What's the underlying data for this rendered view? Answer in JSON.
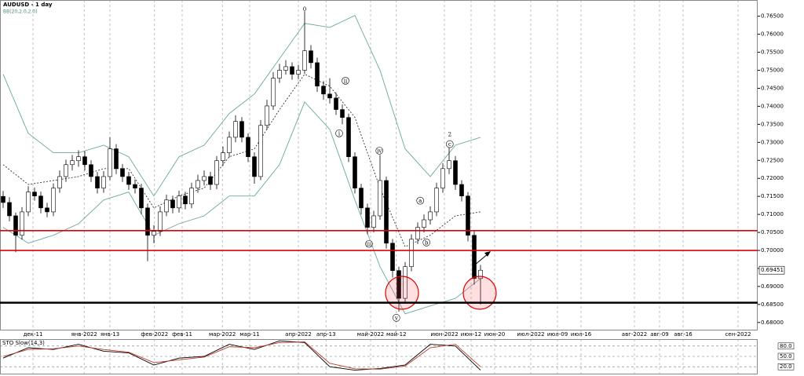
{
  "chart_data": [
    {
      "type": "candlestick",
      "title": "AUDUSD - 1 day",
      "subtitle": "BB(20,2.0,2.0)",
      "up_color": "#ffffff",
      "down_color": "#000000",
      "wick_color": "#000000",
      "xlim": [
        -0.5,
        120.125
      ],
      "ylim": [
        0.678,
        0.7695
      ],
      "grid": "x",
      "xticks": [
        {
          "value": 4.75,
          "label": "дек-11"
        },
        {
          "value": 12.9,
          "label": "янв-2022"
        },
        {
          "value": 17,
          "label": "янв-13"
        },
        {
          "value": 24.1,
          "label": "фев-2022"
        },
        {
          "value": 28.5,
          "label": "фев-11"
        },
        {
          "value": 34.9,
          "label": "мар-2022"
        },
        {
          "value": 39.25,
          "label": "мар-11"
        },
        {
          "value": 47,
          "label": "апр-2022"
        },
        {
          "value": 51.4,
          "label": "апр-13"
        },
        {
          "value": 58.5,
          "label": "май-2022"
        },
        {
          "value": 62.6,
          "label": "май-12"
        },
        {
          "value": 70.25,
          "label": "июн-2022"
        },
        {
          "value": 74.5,
          "label": "июн-12"
        },
        {
          "value": 78.25,
          "label": "июн-20"
        },
        {
          "value": 84,
          "label": "июл-2022"
        },
        {
          "value": 88.25,
          "label": "июл-09"
        },
        {
          "value": 92,
          "label": "июл-16"
        },
        {
          "value": 100.5,
          "label": "авг-2022"
        },
        {
          "value": 104.5,
          "label": "авг-09"
        },
        {
          "value": 108.25,
          "label": "авг-16"
        },
        {
          "value": 117,
          "label": "сен-2022"
        }
      ],
      "yticks": [
        {
          "value": 0.765,
          "label": "0.76500"
        },
        {
          "value": 0.76,
          "label": "0.76000"
        },
        {
          "value": 0.755,
          "label": "0.75500"
        },
        {
          "value": 0.75,
          "label": "0.75000"
        },
        {
          "value": 0.745,
          "label": "0.74500"
        },
        {
          "value": 0.74,
          "label": "0.74000"
        },
        {
          "value": 0.735,
          "label": "0.73500"
        },
        {
          "value": 0.73,
          "label": "0.73000"
        },
        {
          "value": 0.725,
          "label": "0.72500"
        },
        {
          "value": 0.72,
          "label": "0.72000"
        },
        {
          "value": 0.715,
          "label": "0.71500"
        },
        {
          "value": 0.71,
          "label": "0.71000"
        },
        {
          "value": 0.705,
          "label": "0.70500"
        },
        {
          "value": 0.7,
          "label": "0.70000"
        },
        {
          "value": 0.695,
          "label": "0.69500"
        },
        {
          "value": 0.69,
          "label": "0.69000"
        },
        {
          "value": 0.685,
          "label": "0.68500"
        },
        {
          "value": 0.68,
          "label": "0.68000"
        }
      ],
      "last_price": 0.69451,
      "ohlc": [
        [
          0.715,
          0.7165,
          0.7118,
          0.7133
        ],
        [
          0.7133,
          0.7148,
          0.7081,
          0.7096
        ],
        [
          0.7096,
          0.7105,
          0.6995,
          0.7042
        ],
        [
          0.7042,
          0.712,
          0.703,
          0.7107
        ],
        [
          0.7107,
          0.7178,
          0.7095,
          0.7162
        ],
        [
          0.7162,
          0.7175,
          0.7138,
          0.7151
        ],
        [
          0.7151,
          0.7163,
          0.7103,
          0.7118
        ],
        [
          0.7118,
          0.7132,
          0.7092,
          0.7107
        ],
        [
          0.7107,
          0.7186,
          0.7095,
          0.7173
        ],
        [
          0.7173,
          0.7222,
          0.716,
          0.7205
        ],
        [
          0.7205,
          0.7252,
          0.719,
          0.7238
        ],
        [
          0.7238,
          0.7265,
          0.7222,
          0.7249
        ],
        [
          0.7249,
          0.7278,
          0.7232,
          0.726
        ],
        [
          0.726,
          0.7275,
          0.7222,
          0.7238
        ],
        [
          0.7238,
          0.725,
          0.719,
          0.7205
        ],
        [
          0.7205,
          0.7218,
          0.7158,
          0.7173
        ],
        [
          0.7173,
          0.722,
          0.716,
          0.7205
        ],
        [
          0.7205,
          0.7314,
          0.7195,
          0.7282
        ],
        [
          0.7282,
          0.7295,
          0.7212,
          0.7227
        ],
        [
          0.7227,
          0.724,
          0.719,
          0.7205
        ],
        [
          0.7205,
          0.7218,
          0.7168,
          0.7183
        ],
        [
          0.7183,
          0.7197,
          0.7158,
          0.7173
        ],
        [
          0.7173,
          0.7185,
          0.71,
          0.7118
        ],
        [
          0.7118,
          0.713,
          0.697,
          0.7042
        ],
        [
          0.7042,
          0.707,
          0.702,
          0.7053
        ],
        [
          0.7053,
          0.7122,
          0.704,
          0.7107
        ],
        [
          0.7107,
          0.7155,
          0.7095,
          0.714
        ],
        [
          0.714,
          0.7152,
          0.7103,
          0.7118
        ],
        [
          0.7118,
          0.7166,
          0.7105,
          0.7151
        ],
        [
          0.7151,
          0.7163,
          0.7114,
          0.7129
        ],
        [
          0.7129,
          0.7188,
          0.7117,
          0.7173
        ],
        [
          0.7173,
          0.721,
          0.716,
          0.7194
        ],
        [
          0.7194,
          0.7222,
          0.718,
          0.7205
        ],
        [
          0.7205,
          0.7218,
          0.7168,
          0.7183
        ],
        [
          0.7183,
          0.7262,
          0.717,
          0.7249
        ],
        [
          0.7249,
          0.7288,
          0.7235,
          0.7271
        ],
        [
          0.7271,
          0.733,
          0.7258,
          0.7314
        ],
        [
          0.7314,
          0.7375,
          0.73,
          0.7358
        ],
        [
          0.7358,
          0.737,
          0.73,
          0.7314
        ],
        [
          0.7314,
          0.7325,
          0.7245,
          0.726
        ],
        [
          0.726,
          0.7272,
          0.7185,
          0.7205
        ],
        [
          0.7205,
          0.7362,
          0.7195,
          0.7347
        ],
        [
          0.7347,
          0.7418,
          0.7335,
          0.7401
        ],
        [
          0.7401,
          0.7495,
          0.739,
          0.7478
        ],
        [
          0.7478,
          0.7518,
          0.7465,
          0.75
        ],
        [
          0.75,
          0.7528,
          0.7488,
          0.751
        ],
        [
          0.751,
          0.7522,
          0.7474,
          0.7489
        ],
        [
          0.7489,
          0.7515,
          0.7475,
          0.75
        ],
        [
          0.75,
          0.7664,
          0.749,
          0.7554
        ],
        [
          0.7554,
          0.757,
          0.7505,
          0.7521
        ],
        [
          0.7521,
          0.7535,
          0.744,
          0.7456
        ],
        [
          0.7456,
          0.747,
          0.7418,
          0.7434
        ],
        [
          0.7434,
          0.7478,
          0.7408,
          0.7423
        ],
        [
          0.7423,
          0.7438,
          0.7376,
          0.7391
        ],
        [
          0.7391,
          0.7405,
          0.735,
          0.7369
        ],
        [
          0.7369,
          0.738,
          0.7245,
          0.726
        ],
        [
          0.726,
          0.7272,
          0.7158,
          0.7173
        ],
        [
          0.7173,
          0.7185,
          0.71,
          0.7118
        ],
        [
          0.7118,
          0.713,
          0.7045,
          0.7064
        ],
        [
          0.7064,
          0.711,
          0.705,
          0.7096
        ],
        [
          0.7096,
          0.7265,
          0.7085,
          0.7194
        ],
        [
          0.7194,
          0.7205,
          0.7005,
          0.702
        ],
        [
          0.702,
          0.7032,
          0.6925,
          0.6944
        ],
        [
          0.6944,
          0.6955,
          0.683,
          0.6867
        ],
        [
          0.6867,
          0.6968,
          0.6855,
          0.6955
        ],
        [
          0.6955,
          0.7045,
          0.6942,
          0.7031
        ],
        [
          0.7031,
          0.7078,
          0.7018,
          0.7064
        ],
        [
          0.7064,
          0.71,
          0.705,
          0.7085
        ],
        [
          0.7085,
          0.7122,
          0.7072,
          0.7107
        ],
        [
          0.7107,
          0.7188,
          0.7095,
          0.7173
        ],
        [
          0.7173,
          0.7242,
          0.716,
          0.7227
        ],
        [
          0.7227,
          0.729,
          0.7212,
          0.7249
        ],
        [
          0.7249,
          0.7262,
          0.7168,
          0.7183
        ],
        [
          0.7183,
          0.7195,
          0.7136,
          0.7151
        ],
        [
          0.7151,
          0.7162,
          0.7025,
          0.7042
        ],
        [
          0.7042,
          0.7055,
          0.6905,
          0.6922
        ],
        [
          0.6922,
          0.696,
          0.685,
          0.69451
        ]
      ],
      "bands": {
        "x": [
          0,
          4,
          8,
          12,
          16,
          20,
          24,
          28,
          32,
          36,
          40,
          44,
          48,
          52,
          56,
          60,
          64,
          68,
          72,
          76
        ],
        "upper": [
          0.7489,
          0.7325,
          0.7271,
          0.7271,
          0.7292,
          0.726,
          0.7151,
          0.726,
          0.7292,
          0.738,
          0.7434,
          0.7532,
          0.763,
          0.7619,
          0.7652,
          0.75,
          0.7282,
          0.7205,
          0.7292,
          0.7314
        ],
        "middle": [
          0.7238,
          0.7183,
          0.7194,
          0.7205,
          0.7227,
          0.7227,
          0.7118,
          0.7151,
          0.7173,
          0.726,
          0.7282,
          0.7391,
          0.7489,
          0.7456,
          0.7369,
          0.7173,
          0.701,
          0.7042,
          0.7096,
          0.7107
        ],
        "lower": [
          0.7064,
          0.702,
          0.7042,
          0.7074,
          0.714,
          0.7162,
          0.7042,
          0.7074,
          0.7096,
          0.7151,
          0.7151,
          0.7238,
          0.7412,
          0.7336,
          0.714,
          0.6955,
          0.6824,
          0.6846,
          0.6867,
          0.6922
        ],
        "color": "#6aa89a",
        "middle_color": "#333333"
      },
      "levels": [
        {
          "value": 0.7055,
          "color": "#e00000"
        },
        {
          "value": 0.7,
          "color": "#e00000"
        },
        {
          "value": 0.6855,
          "color": "#000000"
        }
      ],
      "annotations": [
        {
          "text": "0",
          "x": 48,
          "y": 0.767,
          "circled": false
        },
        {
          "text": "2",
          "x": 71.1,
          "y": 0.7323,
          "circled": false
        },
        {
          "text": "i",
          "x": 53.5,
          "y": 0.7325,
          "circled": true
        },
        {
          "text": "ii",
          "x": 54.5,
          "y": 0.7471,
          "circled": true
        },
        {
          "text": "iii",
          "x": 58.25,
          "y": 0.7018,
          "circled": true
        },
        {
          "text": "iv",
          "x": 59.9,
          "y": 0.7277,
          "circled": true
        },
        {
          "text": "v",
          "x": 62.6,
          "y": 0.6813,
          "circled": true
        },
        {
          "text": "a",
          "x": 66.4,
          "y": 0.7138,
          "circled": true
        },
        {
          "text": "b",
          "x": 67.4,
          "y": 0.7022,
          "circled": true
        },
        {
          "text": "c",
          "x": 71.1,
          "y": 0.7295,
          "circled": true
        }
      ]
    },
    {
      "type": "line",
      "title": "STO Slow(14,3)",
      "xlim": [
        -0.5,
        120.125
      ],
      "ylim": [
        0,
        100
      ],
      "yticks": [
        {
          "value": 80,
          "label": "80.0"
        },
        {
          "value": 50,
          "label": "50.0"
        },
        {
          "value": 20,
          "label": "20.0"
        }
      ],
      "x": [
        0,
        4,
        8,
        12,
        16,
        20,
        24,
        28,
        32,
        36,
        40,
        44,
        48,
        52,
        56,
        60,
        64,
        68,
        72,
        76
      ],
      "series": [
        {
          "color": "#000000",
          "values": [
            45,
            75,
            70,
            85,
            65,
            60,
            25,
            45,
            50,
            85,
            70,
            95,
            90,
            20,
            10,
            15,
            25,
            85,
            80,
            10
          ]
        },
        {
          "color": "#c0392b",
          "values": [
            50,
            70,
            72,
            80,
            70,
            62,
            32,
            40,
            48,
            78,
            75,
            90,
            92,
            30,
            14,
            13,
            22,
            75,
            85,
            20
          ]
        }
      ]
    }
  ]
}
